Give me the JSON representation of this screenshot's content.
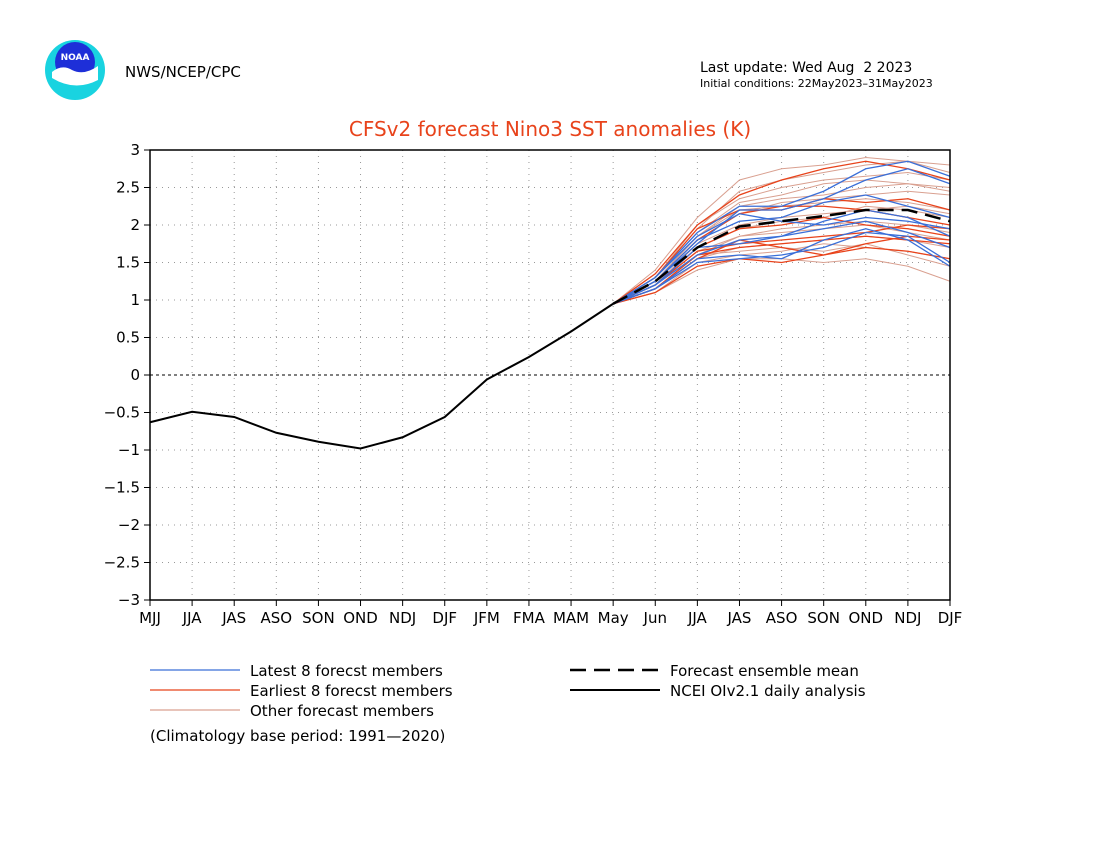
{
  "header": {
    "org": "NWS/NCEP/CPC",
    "logo_text": "NOAA",
    "last_update": "Last update: Wed Aug  2 2023",
    "initial_conditions": "Initial conditions: 22May2023–31May2023"
  },
  "footnote": "(Climatology base period: 1991—2020)",
  "colors": {
    "latest": "#3a6fd8",
    "earliest": "#e8431b",
    "other": "#d9a090",
    "mean": "#000000",
    "analysis": "#000000",
    "title": "#e8431b",
    "logo_outer": "#19d3e0",
    "logo_inner": "#1e2fd8"
  },
  "chart_data": {
    "type": "line",
    "title": "CFSv2 forecast Nino3 SST anomalies (K)",
    "xlabel": "",
    "ylabel": "",
    "categories": [
      "MJJ",
      "JJA",
      "JAS",
      "ASO",
      "SON",
      "OND",
      "NDJ",
      "DJF",
      "JFM",
      "FMA",
      "MAM",
      "May",
      "Jun",
      "JJA",
      "JAS",
      "ASO",
      "SON",
      "OND",
      "NDJ",
      "DJF"
    ],
    "ylim": [
      -3,
      3
    ],
    "yticks": [
      3,
      2.5,
      2,
      1.5,
      1,
      0.5,
      0,
      -0.5,
      -1,
      -1.5,
      -2,
      -2.5,
      -3
    ],
    "ytick_labels": [
      "3",
      "2.5",
      "2",
      "1.5",
      "1",
      "0.5",
      "0",
      "−0.5",
      "−1",
      "−1.5",
      "−2",
      "−2.5",
      "−3"
    ],
    "grid": true,
    "legend": {
      "placement": "bottom",
      "entries": [
        {
          "label": "Latest 8 forecst members",
          "style": "latest"
        },
        {
          "label": "Earliest 8 forecst members",
          "style": "earliest"
        },
        {
          "label": "Other forecast members",
          "style": "other"
        },
        {
          "label": "Forecast ensemble mean",
          "style": "mean"
        },
        {
          "label": "NCEI OIv2.1 daily analysis",
          "style": "analysis"
        }
      ]
    },
    "analysis": {
      "name": "NCEI OIv2.1 daily analysis",
      "x": [
        0,
        1,
        2,
        3,
        4,
        5,
        6,
        7,
        8,
        9,
        10,
        11
      ],
      "values": [
        -0.63,
        -0.49,
        -0.56,
        -0.77,
        -0.89,
        -0.98,
        -0.83,
        -0.56,
        -0.06,
        0.24,
        0.58,
        0.95
      ]
    },
    "ensemble_mean": {
      "name": "Forecast ensemble mean",
      "x": [
        11,
        12,
        13,
        14,
        15,
        16,
        17,
        18,
        19
      ],
      "values": [
        0.95,
        1.25,
        1.7,
        1.98,
        2.05,
        2.12,
        2.2,
        2.2,
        2.05
      ]
    },
    "latest_members": [
      [
        0.95,
        1.3,
        1.9,
        2.25,
        2.25,
        2.45,
        2.75,
        2.85,
        2.65
      ],
      [
        0.95,
        1.2,
        1.6,
        1.8,
        1.85,
        2.05,
        2.2,
        2.1,
        1.85
      ],
      [
        0.95,
        1.25,
        1.75,
        2.2,
        2.2,
        2.35,
        2.6,
        2.75,
        2.55
      ],
      [
        0.95,
        1.15,
        1.5,
        1.55,
        1.6,
        1.7,
        1.9,
        1.85,
        1.5
      ],
      [
        0.95,
        1.2,
        1.7,
        1.75,
        1.85,
        1.95,
        2.05,
        1.9,
        1.7
      ],
      [
        0.95,
        1.3,
        1.85,
        2.15,
        2.05,
        2.0,
        2.1,
        2.05,
        1.95
      ],
      [
        0.95,
        1.15,
        1.55,
        1.6,
        1.55,
        1.8,
        1.95,
        1.8,
        1.45
      ],
      [
        0.95,
        1.25,
        1.8,
        2.05,
        2.1,
        2.3,
        2.4,
        2.25,
        2.1
      ]
    ],
    "earliest_members": [
      [
        0.95,
        1.35,
        2.0,
        2.4,
        2.6,
        2.75,
        2.85,
        2.75,
        2.6
      ],
      [
        0.95,
        1.1,
        1.45,
        1.55,
        1.5,
        1.6,
        1.75,
        1.85,
        1.8
      ],
      [
        0.95,
        1.3,
        1.95,
        2.2,
        2.2,
        2.35,
        2.3,
        2.35,
        2.2
      ],
      [
        0.95,
        1.2,
        1.65,
        1.75,
        1.8,
        1.85,
        1.9,
        2.0,
        1.95
      ],
      [
        0.95,
        1.15,
        1.55,
        1.8,
        1.7,
        1.6,
        1.7,
        1.65,
        1.55
      ],
      [
        0.95,
        1.25,
        1.8,
        2.15,
        2.25,
        2.25,
        2.2,
        2.1,
        2.0
      ],
      [
        0.95,
        1.2,
        1.7,
        1.95,
        2.0,
        2.1,
        2.0,
        1.95,
        1.85
      ],
      [
        0.95,
        1.15,
        1.6,
        1.7,
        1.75,
        1.8,
        1.85,
        1.8,
        1.75
      ]
    ],
    "other_members": [
      [
        0.95,
        1.4,
        2.1,
        2.6,
        2.75,
        2.8,
        2.9,
        2.85,
        2.7
      ],
      [
        0.95,
        1.3,
        1.95,
        2.45,
        2.6,
        2.7,
        2.8,
        2.85,
        2.8
      ],
      [
        0.95,
        1.25,
        1.85,
        2.25,
        2.35,
        2.4,
        2.5,
        2.55,
        2.45
      ],
      [
        0.95,
        1.2,
        1.7,
        1.95,
        2.05,
        2.1,
        2.25,
        2.2,
        2.1
      ],
      [
        0.95,
        1.15,
        1.55,
        1.7,
        1.75,
        1.8,
        1.85,
        1.8,
        1.7
      ],
      [
        0.95,
        1.1,
        1.4,
        1.55,
        1.55,
        1.5,
        1.55,
        1.45,
        1.25
      ],
      [
        0.95,
        1.2,
        1.65,
        1.85,
        1.95,
        2.0,
        2.05,
        2.0,
        1.9
      ],
      [
        0.95,
        1.25,
        1.8,
        2.15,
        2.3,
        2.35,
        2.4,
        2.45,
        2.4
      ],
      [
        0.95,
        1.15,
        1.6,
        1.65,
        1.7,
        1.65,
        1.75,
        1.6,
        1.45
      ],
      [
        0.95,
        1.3,
        1.9,
        2.3,
        2.4,
        2.55,
        2.6,
        2.55,
        2.5
      ],
      [
        0.95,
        1.2,
        1.75,
        2.0,
        2.1,
        2.15,
        2.2,
        2.25,
        2.15
      ],
      [
        0.95,
        1.1,
        1.5,
        1.6,
        1.65,
        1.75,
        1.7,
        1.65,
        1.55
      ],
      [
        0.95,
        1.25,
        1.85,
        2.2,
        2.25,
        2.3,
        2.35,
        2.3,
        2.2
      ],
      [
        0.95,
        1.15,
        1.6,
        1.85,
        1.9,
        1.95,
        2.0,
        1.9,
        1.8
      ],
      [
        0.95,
        1.3,
        2.0,
        2.35,
        2.5,
        2.6,
        2.65,
        2.7,
        2.6
      ]
    ]
  }
}
